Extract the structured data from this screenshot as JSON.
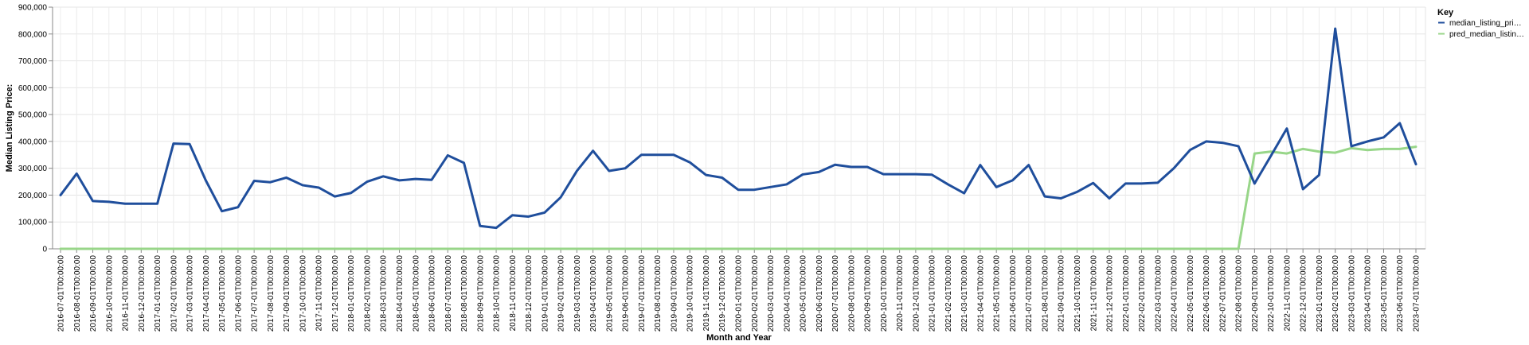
{
  "chart_data": {
    "type": "line",
    "xlabel": "Month and Year",
    "ylabel": "Median Listing Price:",
    "ylim": [
      0,
      900000
    ],
    "yticks": [
      "0",
      "100,000",
      "200,000",
      "300,000",
      "400,000",
      "500,000",
      "600,000",
      "700,000",
      "800,000",
      "900,000"
    ],
    "ytick_values": [
      0,
      100000,
      200000,
      300000,
      400000,
      500000,
      600000,
      700000,
      800000,
      900000
    ],
    "grid": true,
    "legend": {
      "title": "Key",
      "placement": "top-right"
    },
    "categories": [
      "2016-07-01T00:00:00",
      "2016-08-01T00:00:00",
      "2016-09-01T00:00:00",
      "2016-10-01T00:00:00",
      "2016-11-01T00:00:00",
      "2016-12-01T00:00:00",
      "2017-01-01T00:00:00",
      "2017-02-01T00:00:00",
      "2017-03-01T00:00:00",
      "2017-04-01T00:00:00",
      "2017-05-01T00:00:00",
      "2017-06-01T00:00:00",
      "2017-07-01T00:00:00",
      "2017-08-01T00:00:00",
      "2017-09-01T00:00:00",
      "2017-10-01T00:00:00",
      "2017-11-01T00:00:00",
      "2017-12-01T00:00:00",
      "2018-01-01T00:00:00",
      "2018-02-01T00:00:00",
      "2018-03-01T00:00:00",
      "2018-04-01T00:00:00",
      "2018-05-01T00:00:00",
      "2018-06-01T00:00:00",
      "2018-07-01T00:00:00",
      "2018-08-01T00:00:00",
      "2018-09-01T00:00:00",
      "2018-10-01T00:00:00",
      "2018-11-01T00:00:00",
      "2018-12-01T00:00:00",
      "2019-01-01T00:00:00",
      "2019-02-01T00:00:00",
      "2019-03-01T00:00:00",
      "2019-04-01T00:00:00",
      "2019-05-01T00:00:00",
      "2019-06-01T00:00:00",
      "2019-07-01T00:00:00",
      "2019-08-01T00:00:00",
      "2019-09-01T00:00:00",
      "2019-10-01T00:00:00",
      "2019-11-01T00:00:00",
      "2019-12-01T00:00:00",
      "2020-01-01T00:00:00",
      "2020-02-01T00:00:00",
      "2020-03-01T00:00:00",
      "2020-04-01T00:00:00",
      "2020-05-01T00:00:00",
      "2020-06-01T00:00:00",
      "2020-07-01T00:00:00",
      "2020-08-01T00:00:00",
      "2020-09-01T00:00:00",
      "2020-10-01T00:00:00",
      "2020-11-01T00:00:00",
      "2020-12-01T00:00:00",
      "2021-01-01T00:00:00",
      "2021-02-01T00:00:00",
      "2021-03-01T00:00:00",
      "2021-04-01T00:00:00",
      "2021-05-01T00:00:00",
      "2021-06-01T00:00:00",
      "2021-07-01T00:00:00",
      "2021-08-01T00:00:00",
      "2021-09-01T00:00:00",
      "2021-10-01T00:00:00",
      "2021-11-01T00:00:00",
      "2021-12-01T00:00:00",
      "2022-01-01T00:00:00",
      "2022-02-01T00:00:00",
      "2022-03-01T00:00:00",
      "2022-04-01T00:00:00",
      "2022-05-01T00:00:00",
      "2022-06-01T00:00:00",
      "2022-07-01T00:00:00",
      "2022-08-01T00:00:00",
      "2022-09-01T00:00:00",
      "2022-10-01T00:00:00",
      "2022-11-01T00:00:00",
      "2022-12-01T00:00:00",
      "2023-01-01T00:00:00",
      "2023-02-01T00:00:00",
      "2023-03-01T00:00:00",
      "2023-04-01T00:00:00",
      "2023-05-01T00:00:00",
      "2023-06-01T00:00:00",
      "2023-07-01T00:00:00"
    ],
    "series": [
      {
        "name": "median_listing_pri…",
        "color": "#1f4e9c",
        "values": [
          200000,
          280000,
          178000,
          175000,
          168000,
          168000,
          168000,
          392000,
          390000,
          255000,
          140000,
          155000,
          253000,
          248000,
          265000,
          237000,
          228000,
          195000,
          208000,
          250000,
          270000,
          255000,
          260000,
          257000,
          348000,
          320000,
          85000,
          78000,
          125000,
          120000,
          135000,
          192000,
          290000,
          365000,
          290000,
          300000,
          350000,
          350000,
          350000,
          322000,
          275000,
          265000,
          220000,
          220000,
          230000,
          240000,
          277000,
          286000,
          313000,
          305000,
          305000,
          278000,
          278000,
          278000,
          276000,
          240000,
          207000,
          312000,
          230000,
          255000,
          312000,
          195000,
          188000,
          212000,
          245000,
          188000,
          243000,
          243000,
          246000,
          300000,
          368000,
          400000,
          395000,
          382000,
          243000,
          345000,
          448000,
          222000,
          275000,
          820000,
          382000,
          400000,
          415000,
          468000,
          315000
        ]
      },
      {
        "name": "pred_median_listin…",
        "color": "#98d689",
        "values": [
          0,
          0,
          0,
          0,
          0,
          0,
          0,
          0,
          0,
          0,
          0,
          0,
          0,
          0,
          0,
          0,
          0,
          0,
          0,
          0,
          0,
          0,
          0,
          0,
          0,
          0,
          0,
          0,
          0,
          0,
          0,
          0,
          0,
          0,
          0,
          0,
          0,
          0,
          0,
          0,
          0,
          0,
          0,
          0,
          0,
          0,
          0,
          0,
          0,
          0,
          0,
          0,
          0,
          0,
          0,
          0,
          0,
          0,
          0,
          0,
          0,
          0,
          0,
          0,
          0,
          0,
          0,
          0,
          0,
          0,
          0,
          0,
          0,
          0,
          355000,
          362000,
          355000,
          372000,
          362000,
          358000,
          375000,
          368000,
          372000,
          372000,
          380000
        ]
      }
    ]
  }
}
